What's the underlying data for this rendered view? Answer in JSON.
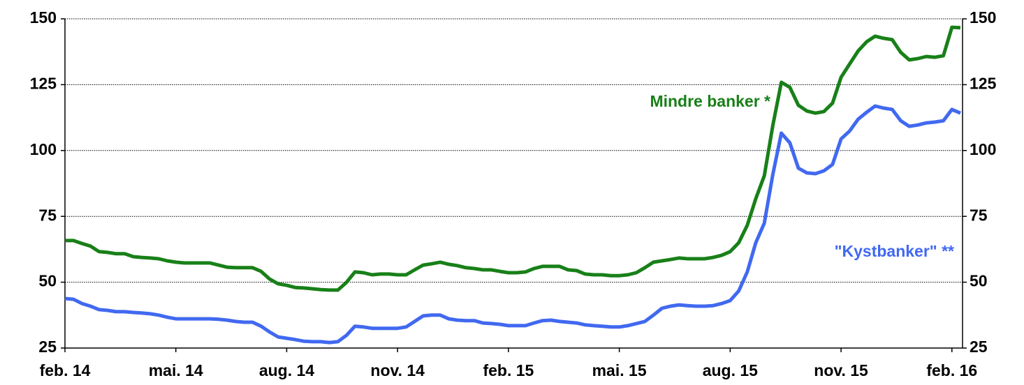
{
  "chart_data": {
    "type": "line",
    "categories": [
      "feb. 14",
      null,
      null,
      null,
      null,
      null,
      null,
      null,
      null,
      null,
      null,
      null,
      null,
      "mai. 14",
      null,
      null,
      null,
      null,
      null,
      null,
      null,
      null,
      null,
      null,
      null,
      null,
      "aug. 14",
      null,
      null,
      null,
      null,
      null,
      null,
      null,
      null,
      null,
      null,
      null,
      null,
      "nov. 14",
      null,
      null,
      null,
      null,
      null,
      null,
      null,
      null,
      null,
      null,
      null,
      null,
      "feb. 15",
      null,
      null,
      null,
      null,
      null,
      null,
      null,
      null,
      null,
      null,
      null,
      null,
      "mai. 15",
      null,
      null,
      null,
      null,
      null,
      null,
      null,
      null,
      null,
      null,
      null,
      null,
      "aug. 15",
      null,
      null,
      null,
      null,
      null,
      null,
      null,
      null,
      null,
      null,
      null,
      null,
      "nov. 15",
      null,
      null,
      null,
      null,
      null,
      null,
      null,
      null,
      null,
      null,
      null,
      null,
      "feb. 16",
      null
    ],
    "series": [
      {
        "name": "Mindre banker *",
        "color": "#188018",
        "values": [
          65.8,
          65.8,
          64.7,
          63.7,
          61.6,
          61.3,
          60.8,
          60.8,
          59.7,
          59.4,
          59.2,
          58.9,
          58.1,
          57.6,
          57.3,
          57.3,
          57.3,
          57.3,
          56.5,
          55.7,
          55.5,
          55.5,
          55.5,
          54.1,
          51.2,
          49.4,
          48.8,
          48.0,
          47.8,
          47.5,
          47.2,
          47.0,
          47.0,
          49.9,
          53.9,
          53.6,
          52.8,
          53.1,
          53.1,
          52.8,
          52.8,
          54.7,
          56.5,
          57.0,
          57.6,
          56.8,
          56.3,
          55.5,
          55.2,
          54.7,
          54.7,
          54.1,
          53.6,
          53.6,
          53.9,
          55.2,
          56.0,
          56.0,
          56.0,
          54.7,
          54.4,
          53.1,
          52.8,
          52.8,
          52.5,
          52.5,
          52.8,
          53.6,
          55.5,
          57.6,
          58.1,
          58.6,
          59.2,
          58.9,
          58.9,
          58.9,
          59.4,
          60.2,
          61.6,
          65.0,
          71.6,
          81.7,
          90.4,
          109.5,
          125.9,
          124.0,
          117.2,
          115.0,
          114.2,
          114.8,
          118.0,
          127.8,
          132.8,
          137.8,
          141.3,
          143.4,
          142.6,
          142.1,
          137.3,
          134.4,
          134.9,
          135.7,
          135.4,
          136.0,
          146.8,
          146.6
        ]
      },
      {
        "name": "\"Kystbanker\" **",
        "color": "#4169f0",
        "values": [
          43.8,
          43.5,
          41.9,
          40.9,
          39.6,
          39.3,
          38.8,
          38.8,
          38.5,
          38.3,
          38.0,
          37.5,
          36.7,
          36.1,
          36.1,
          36.1,
          36.1,
          36.1,
          35.9,
          35.6,
          35.1,
          34.8,
          34.8,
          33.3,
          31.1,
          29.2,
          28.7,
          28.2,
          27.6,
          27.4,
          27.4,
          27.1,
          27.4,
          29.8,
          33.3,
          33.0,
          32.5,
          32.5,
          32.5,
          32.5,
          33.0,
          35.1,
          37.2,
          37.5,
          37.5,
          36.1,
          35.6,
          35.4,
          35.4,
          34.5,
          34.3,
          34.0,
          33.5,
          33.5,
          33.5,
          34.5,
          35.4,
          35.6,
          35.1,
          34.8,
          34.5,
          33.8,
          33.5,
          33.3,
          33.0,
          33.0,
          33.5,
          34.3,
          35.1,
          37.5,
          40.1,
          40.9,
          41.4,
          41.1,
          40.9,
          40.9,
          41.1,
          41.9,
          43.0,
          46.7,
          53.9,
          65.0,
          72.4,
          90.9,
          106.6,
          102.9,
          93.3,
          91.5,
          91.2,
          92.3,
          94.7,
          104.4,
          107.4,
          111.9,
          114.5,
          116.9,
          116.1,
          115.6,
          111.3,
          109.2,
          109.7,
          110.5,
          110.8,
          111.3,
          115.6,
          114.2
        ]
      }
    ],
    "ylim": [
      25,
      150
    ],
    "yticks": [
      25,
      50,
      75,
      100,
      125,
      150
    ],
    "grid": true
  }
}
